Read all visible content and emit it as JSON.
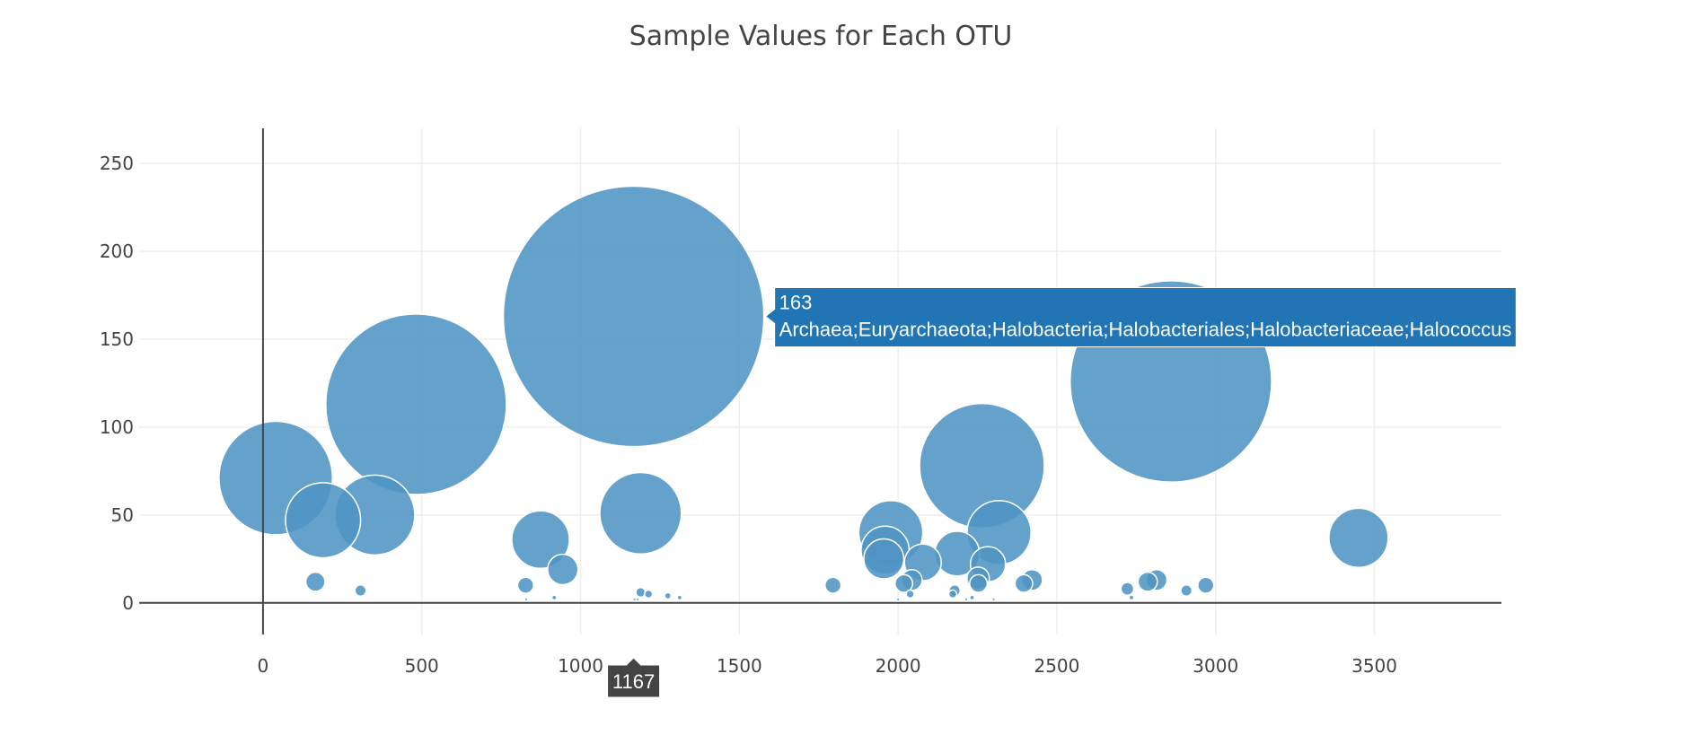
{
  "chart_data": {
    "type": "scatter",
    "title": "Sample Values for Each OTU",
    "xlabel": "",
    "ylabel": "",
    "xlim": [
      -390,
      3900
    ],
    "ylim": [
      -18,
      270
    ],
    "x_ticks": [
      0,
      500,
      1000,
      1500,
      2000,
      2500,
      3000,
      3500
    ],
    "y_ticks": [
      0,
      50,
      100,
      150,
      200,
      250
    ],
    "grid": true,
    "legend": "none",
    "marker_color": "#4f94c4",
    "hover_color": "#2275b4",
    "axis_label_color": "#444444",
    "series": [
      {
        "x": [
          1167,
          2859,
          482,
          40,
          2264,
          1189,
          352,
          189,
          2318,
          1977,
          3450,
          874,
          1959,
          1955,
          2186,
          2078,
          2283,
          944,
          2252,
          2043,
          2422,
          2814,
          2786,
          2396,
          165,
          2969,
          827,
          1795,
          2018,
          2722,
          2908,
          2735,
          2253,
          307,
          2178,
          1189,
          1214,
          2038,
          1275,
          2172,
          917,
          1312,
          829,
          2233,
          1170,
          1180,
          2000,
          2215,
          2301,
          2950,
          2060,
          2175,
          1980
        ],
        "y": [
          163,
          126,
          113,
          71,
          78,
          51,
          50,
          47,
          40,
          40,
          37,
          36,
          30,
          25,
          28,
          23,
          22,
          19,
          14,
          13,
          13,
          13,
          12,
          11,
          12,
          10,
          10,
          10,
          11,
          8,
          7,
          3,
          11,
          7,
          7,
          6,
          5,
          5,
          4,
          5,
          3,
          3,
          2,
          3,
          2,
          2,
          2,
          2,
          2,
          1,
          1,
          1,
          1
        ]
      }
    ],
    "hover": {
      "x": 1167,
      "y": 163,
      "x_label": "1167",
      "value_label": "163",
      "text": "Archaea;Euryarchaeota;Halobacteria;Halobacteriales;Halobacteriaceae;Halococcus"
    }
  }
}
